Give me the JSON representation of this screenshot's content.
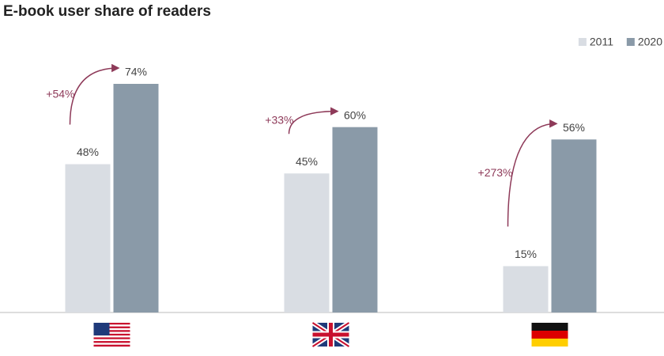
{
  "chart_data": {
    "type": "bar",
    "title": "E-book user share of readers",
    "categories": [
      null,
      null,
      null
    ],
    "series": [
      {
        "name": "2011",
        "color": "#d9dde3",
        "values": [
          48,
          45,
          15
        ],
        "value_labels": [
          "48%",
          "45%",
          "15%"
        ]
      },
      {
        "name": "2020",
        "color": "#8a9aa8",
        "values": [
          74,
          60,
          56
        ],
        "value_labels": [
          "74%",
          "60%",
          "56%"
        ]
      }
    ],
    "annotations": [
      "+54%",
      "+33%",
      "+273%"
    ],
    "annotation_color": "#8e3a59",
    "legend": "top-right"
  }
}
